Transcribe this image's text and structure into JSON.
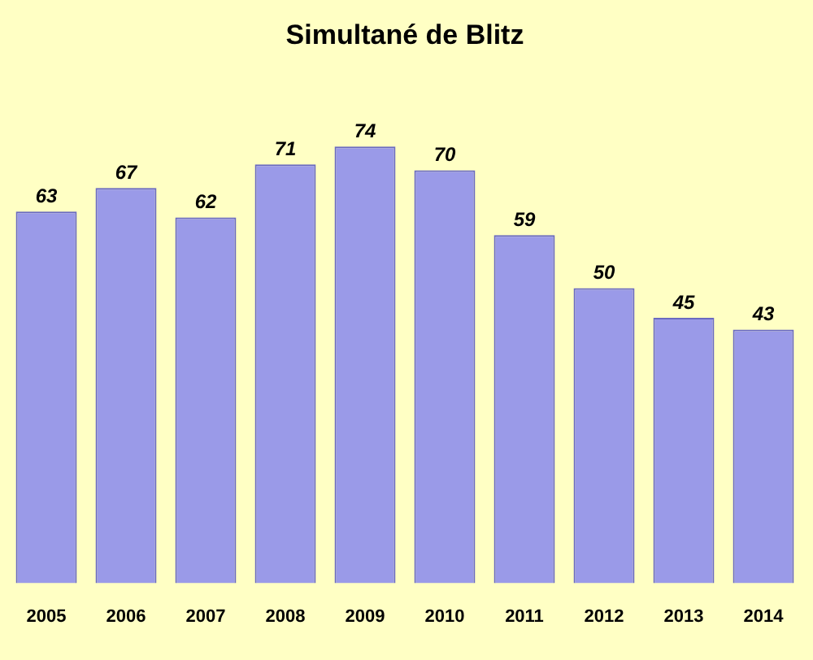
{
  "chart_data": {
    "type": "bar",
    "title": "Simultané de Blitz",
    "categories": [
      "2005",
      "2006",
      "2007",
      "2008",
      "2009",
      "2010",
      "2011",
      "2012",
      "2013",
      "2014"
    ],
    "values": [
      63,
      67,
      62,
      71,
      74,
      70,
      59,
      50,
      45,
      43
    ],
    "color": "#9a9ae8",
    "data_labels": true,
    "tick_labels": "x",
    "grid": false,
    "legend": false
  }
}
